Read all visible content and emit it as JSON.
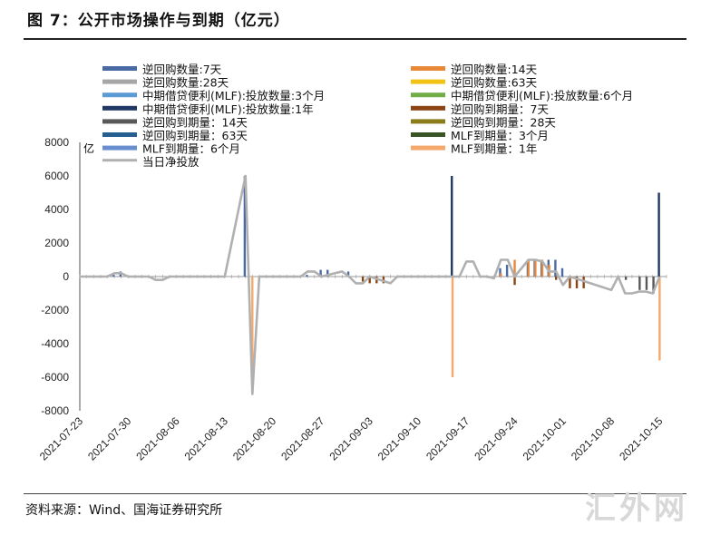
{
  "figure": {
    "title": "图 7：公开市场操作与到期（亿元）",
    "source": "资料来源：Wind、国海证券研究所",
    "watermark": "汇外网"
  },
  "chart_data": {
    "type": "bar",
    "ylabel": "亿",
    "ylim": [
      -8000,
      8000
    ],
    "yticks": [
      8000,
      6000,
      4000,
      2000,
      0,
      -2000,
      -4000,
      -6000,
      -8000
    ],
    "xtick_labels": [
      "2021-07-23",
      "2021-07-30",
      "2021-08-06",
      "2021-08-13",
      "2021-08-20",
      "2021-08-27",
      "2021-09-03",
      "2021-09-10",
      "2021-09-17",
      "2021-09-24",
      "2021-10-01",
      "2021-10-08",
      "2021-10-15"
    ],
    "grid": false,
    "legend_position": "top",
    "dates": [
      "07-23",
      "07-24",
      "07-25",
      "07-26",
      "07-27",
      "07-28",
      "07-29",
      "07-30",
      "07-31",
      "08-01",
      "08-02",
      "08-03",
      "08-04",
      "08-05",
      "08-06",
      "08-07",
      "08-08",
      "08-09",
      "08-10",
      "08-11",
      "08-12",
      "08-13",
      "08-14",
      "08-15",
      "08-16",
      "08-17",
      "08-18",
      "08-19",
      "08-20",
      "08-21",
      "08-22",
      "08-23",
      "08-24",
      "08-25",
      "08-26",
      "08-27",
      "08-28",
      "08-29",
      "08-30",
      "08-31",
      "09-01",
      "09-02",
      "09-03",
      "09-04",
      "09-05",
      "09-06",
      "09-07",
      "09-08",
      "09-09",
      "09-10",
      "09-11",
      "09-12",
      "09-13",
      "09-14",
      "09-15",
      "09-16",
      "09-17",
      "09-18",
      "09-19",
      "09-20",
      "09-21",
      "09-22",
      "09-23",
      "09-24",
      "09-25",
      "09-26",
      "09-27",
      "09-28",
      "09-29",
      "09-30",
      "10-01",
      "10-02",
      "10-03",
      "10-04",
      "10-05",
      "10-06",
      "10-07",
      "10-08",
      "10-09",
      "10-10",
      "10-11",
      "10-12",
      "10-13",
      "10-14",
      "10-15",
      "10-16"
    ],
    "series": [
      {
        "name": "逆回购数量:7天",
        "color": "#4a6aa5",
        "values": {
          "07-28": 100,
          "07-29": 300,
          "08-16": 6000,
          "08-25": 100,
          "08-27": 400,
          "08-28": 400,
          "08-31": 300,
          "09-22": 500,
          "09-23": 700,
          "09-26": 1000,
          "09-27": 1000,
          "09-28": 1000,
          "09-29": 1000,
          "09-30": 1000,
          "10-01": 500
        }
      },
      {
        "name": "逆回购数量:14天",
        "color": "#e8893a",
        "values": {
          "09-22": 200,
          "09-24": 1000,
          "09-26": 1000,
          "09-27": 1000,
          "09-28": 1000,
          "09-29": 700
        }
      },
      {
        "name": "逆回购数量:28天",
        "color": "#a6a6a6",
        "values": {}
      },
      {
        "name": "逆回购数量:63天",
        "color": "#f2c314",
        "values": {}
      },
      {
        "name": "中期借贷便利(MLF):投放数量:3个月",
        "color": "#5b9bd5",
        "values": {}
      },
      {
        "name": "中期借贷便利(MLF):投放数量:6个月",
        "color": "#70ad47",
        "values": {}
      },
      {
        "name": "中期借贷便利(MLF):投放数量:1年",
        "color": "#203864",
        "values": {
          "09-15": 6000,
          "10-15": 5000
        }
      },
      {
        "name": "逆回购到期量：7天",
        "color": "#8b4513",
        "values": {
          "09-02": -300,
          "09-03": -400,
          "09-04": -400,
          "09-05": -400,
          "09-24": -500,
          "09-30": -200,
          "10-02": -700,
          "10-03": -700,
          "10-04": -700
        }
      },
      {
        "name": "逆回购到期量：14天",
        "color": "#595959",
        "values": {
          "10-10": -200,
          "10-12": -800,
          "10-13": -800,
          "10-14": -1000
        }
      },
      {
        "name": "逆回购到期量：28天",
        "color": "#8c7d1a",
        "values": {}
      },
      {
        "name": "逆回购到期量：63天",
        "color": "#255e91",
        "values": {}
      },
      {
        "name": "MLF到期量：3个月",
        "color": "#375623",
        "values": {}
      },
      {
        "name": "MLF到期量：6个月",
        "color": "#698ed0",
        "values": {}
      },
      {
        "name": "MLF到期量：1年",
        "color": "#f4a86b",
        "values": {
          "08-17": -7000,
          "09-15": -6000,
          "10-15": -5000
        }
      }
    ],
    "net_injection": {
      "name": "当日净投放",
      "color": "#b0b0b0",
      "points": [
        [
          "07-23",
          0
        ],
        [
          "07-27",
          0
        ],
        [
          "07-28",
          200
        ],
        [
          "07-29",
          200
        ],
        [
          "07-30",
          0
        ],
        [
          "08-02",
          0
        ],
        [
          "08-03",
          -200
        ],
        [
          "08-04",
          -200
        ],
        [
          "08-05",
          0
        ],
        [
          "08-13",
          0
        ],
        [
          "08-16",
          6000
        ],
        [
          "08-17",
          -7000
        ],
        [
          "08-18",
          0
        ],
        [
          "08-24",
          0
        ],
        [
          "08-25",
          300
        ],
        [
          "08-26",
          300
        ],
        [
          "08-27",
          0
        ],
        [
          "08-30",
          300
        ],
        [
          "08-31",
          0
        ],
        [
          "09-01",
          -400
        ],
        [
          "09-02",
          -400
        ],
        [
          "09-03",
          0
        ],
        [
          "09-06",
          -400
        ],
        [
          "09-07",
          0
        ],
        [
          "09-14",
          0
        ],
        [
          "09-15",
          0
        ],
        [
          "09-16",
          0
        ],
        [
          "09-17",
          900
        ],
        [
          "09-18",
          900
        ],
        [
          "09-19",
          0
        ],
        [
          "09-20",
          0
        ],
        [
          "09-21",
          -100
        ],
        [
          "09-22",
          1000
        ],
        [
          "09-23",
          1000
        ],
        [
          "09-24",
          0
        ],
        [
          "09-26",
          1000
        ],
        [
          "09-27",
          1000
        ],
        [
          "09-28",
          900
        ],
        [
          "09-29",
          300
        ],
        [
          "09-30",
          300
        ],
        [
          "10-01",
          -500
        ],
        [
          "10-02",
          0
        ],
        [
          "10-08",
          -800
        ],
        [
          "10-09",
          0
        ],
        [
          "10-10",
          -1000
        ],
        [
          "10-11",
          -1000
        ],
        [
          "10-12",
          -900
        ],
        [
          "10-13",
          -900
        ],
        [
          "10-14",
          -1000
        ],
        [
          "10-15",
          0
        ]
      ]
    }
  }
}
